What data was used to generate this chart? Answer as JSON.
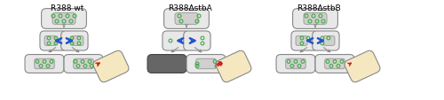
{
  "title1": "R388 wt",
  "title2": "R388ΔstbA",
  "title3": "R388ΔstbB",
  "cell_fill": "#e8e8e8",
  "nucleoid_fill": "#d0d0d0",
  "cell_edge": "#888888",
  "plasmid_color": "#44aa44",
  "blue_arrow": "#2255cc",
  "red_arrow": "#cc2222",
  "recipient_fill": "#f5e8c0",
  "dark_fill": "#666666",
  "title_fontsize": 6.5
}
